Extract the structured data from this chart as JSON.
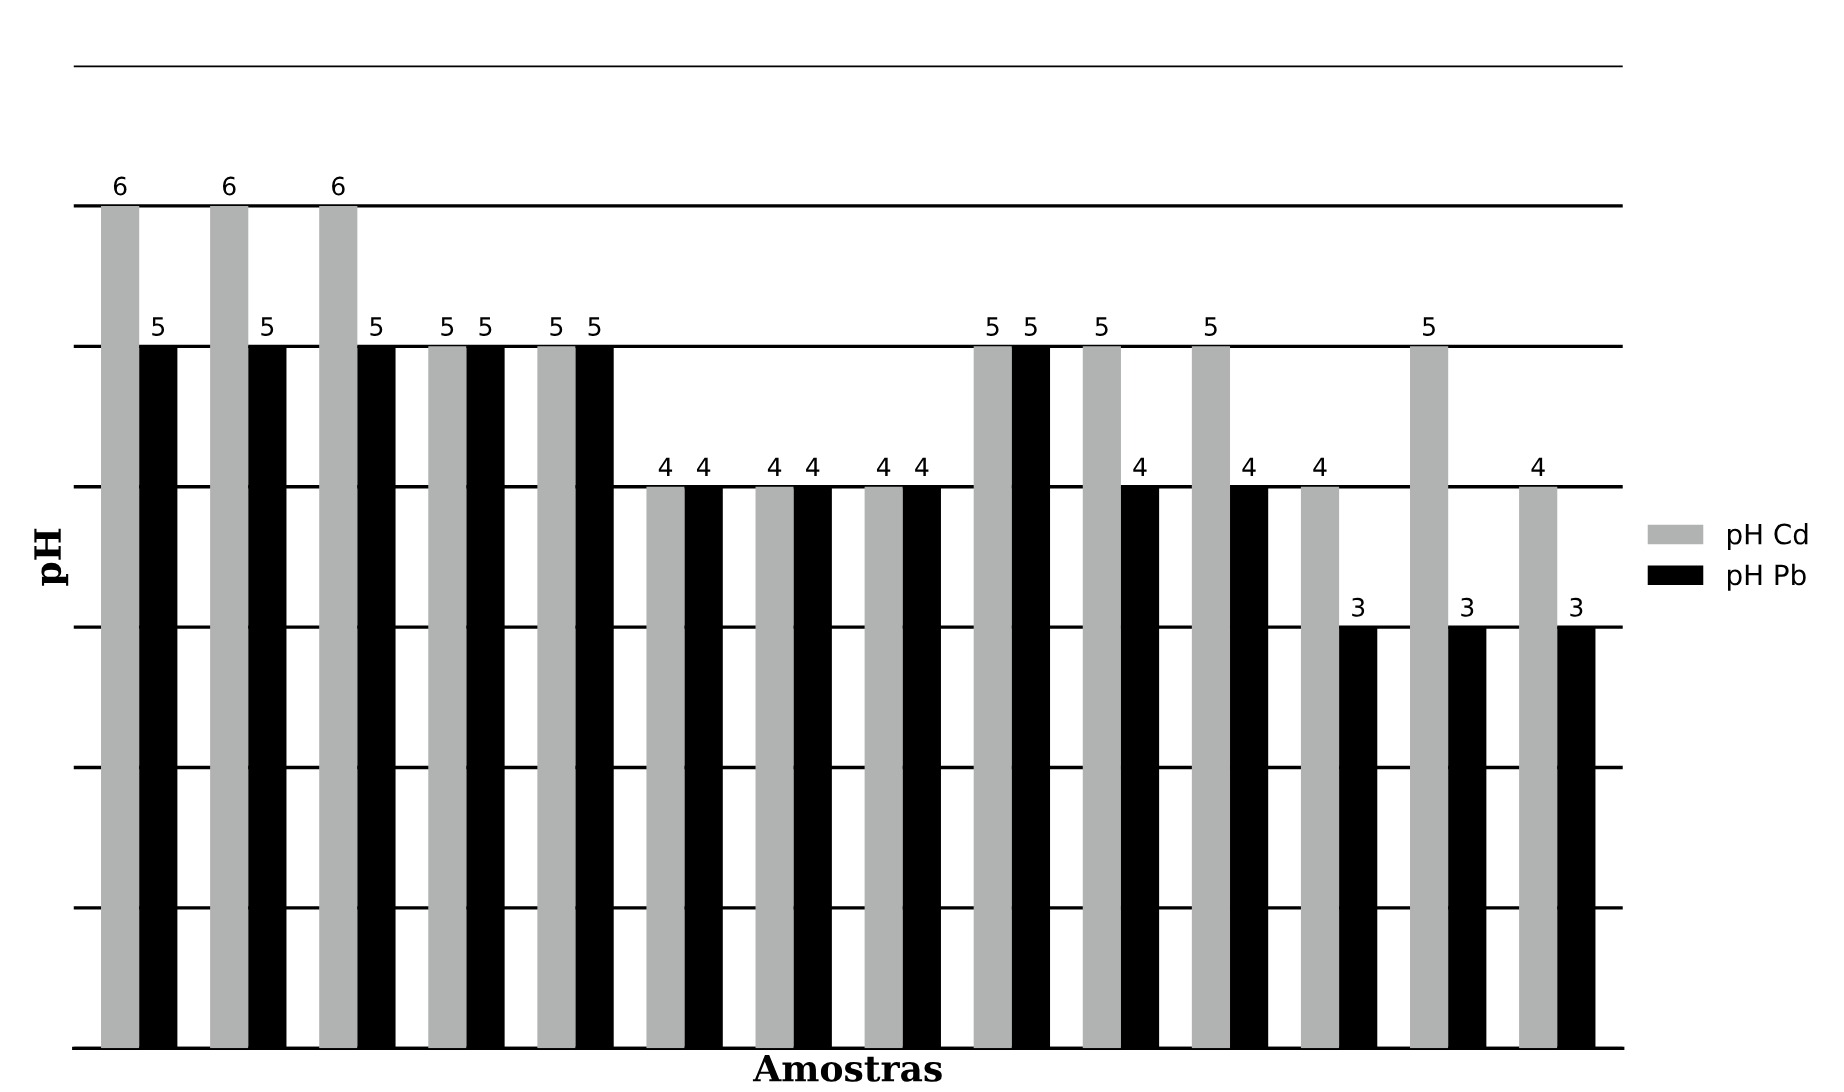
{
  "chart_data": {
    "type": "bar",
    "xlabel": "Amostras",
    "ylabel": "pH",
    "categories": [
      null,
      null,
      null,
      null,
      null,
      null,
      null,
      null,
      null,
      null,
      null,
      null,
      null,
      null
    ],
    "series": [
      {
        "name": "pH Cd",
        "color": "#b1b3b3",
        "values": [
          6,
          6,
          6,
          5,
          5,
          4,
          4,
          4,
          5,
          5,
          5,
          4,
          5,
          4
        ]
      },
      {
        "name": "pH Pb",
        "color": "#000000",
        "values": [
          5,
          5,
          5,
          5,
          5,
          4,
          4,
          4,
          5,
          4,
          4,
          3,
          3,
          3
        ]
      }
    ],
    "ylim": [
      0,
      7
    ],
    "yticks": [
      {
        "value": 0,
        "label": null
      },
      {
        "value": 1,
        "label": null
      },
      {
        "value": 2,
        "label": null
      },
      {
        "value": 3,
        "label": null
      },
      {
        "value": 4,
        "label": null
      },
      {
        "value": 5,
        "label": null
      },
      {
        "value": 6,
        "label": null
      },
      {
        "value": 7,
        "label": null
      }
    ],
    "tick_labels": false,
    "grid": "y",
    "legend": "right",
    "data_labels": true
  }
}
